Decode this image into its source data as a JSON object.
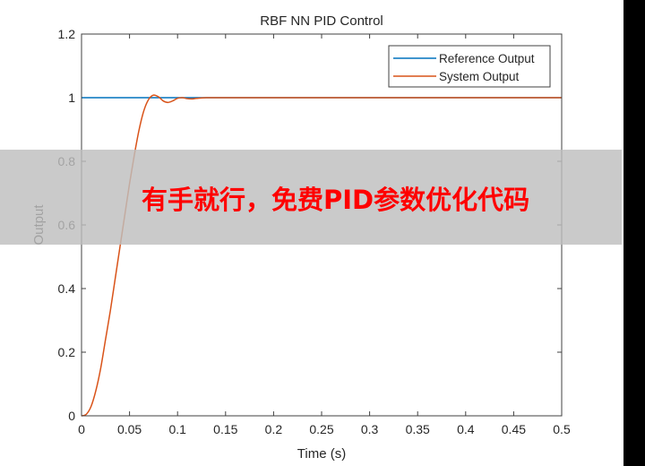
{
  "chart_data": {
    "type": "line",
    "title": "RBF NN PID Control",
    "xlabel": "Time (s)",
    "ylabel": "Output",
    "xlim": [
      0,
      0.5
    ],
    "ylim": [
      0,
      1.2
    ],
    "xticks": [
      "0",
      "0.05",
      "0.1",
      "0.15",
      "0.2",
      "0.25",
      "0.3",
      "0.35",
      "0.4",
      "0.45",
      "0.5"
    ],
    "yticks": [
      "0",
      "0.2",
      "0.4",
      "0.6",
      "0.8",
      "1",
      "1.2"
    ],
    "grid": false,
    "legend_position": "northeast",
    "x": [
      0,
      0.005,
      0.01,
      0.015,
      0.02,
      0.025,
      0.03,
      0.035,
      0.04,
      0.045,
      0.05,
      0.055,
      0.06,
      0.065,
      0.07,
      0.075,
      0.08,
      0.085,
      0.09,
      0.095,
      0.1,
      0.105,
      0.11,
      0.115,
      0.12,
      0.13,
      0.15,
      0.2,
      0.3,
      0.4,
      0.5
    ],
    "series": [
      {
        "name": "Reference Output",
        "color": "#0072BD",
        "values": [
          1,
          1,
          1,
          1,
          1,
          1,
          1,
          1,
          1,
          1,
          1,
          1,
          1,
          1,
          1,
          1,
          1,
          1,
          1,
          1,
          1,
          1,
          1,
          1,
          1,
          1,
          1,
          1,
          1,
          1,
          1
        ]
      },
      {
        "name": "System Output",
        "color": "#D95319",
        "values": [
          0,
          0.005,
          0.03,
          0.08,
          0.15,
          0.24,
          0.33,
          0.43,
          0.53,
          0.63,
          0.73,
          0.82,
          0.9,
          0.96,
          0.995,
          1.008,
          1.003,
          0.99,
          0.985,
          0.99,
          0.998,
          1.0,
          0.997,
          0.996,
          0.998,
          1.0,
          1.0,
          1.0,
          1.0,
          1.0,
          1.0
        ]
      }
    ]
  },
  "overlay": {
    "banner_text": "有手就行，免费PID参数优化代码",
    "banner_text_color": "#ff0000",
    "banner_bg_color": "#c8c8c8"
  }
}
